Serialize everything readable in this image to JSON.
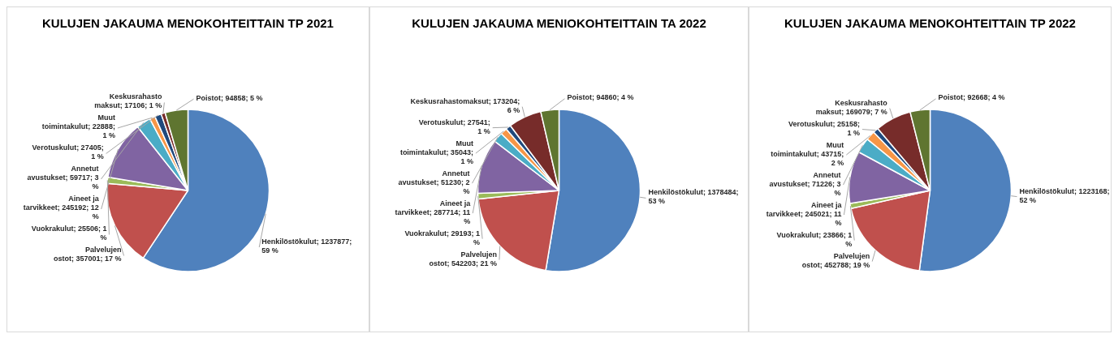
{
  "chart_data": [
    {
      "type": "pie",
      "title": "KULUJEN JAKAUMA MENOKOHTEITTAIN TP 2021",
      "categories": [
        "Henkilöstökulut",
        "Palvelujen ostot",
        "Vuokrakulut",
        "Aineet ja tarvikkeet",
        "Annetut avustukset",
        "Muut toimintakulut",
        "Verotuskulut",
        "Keskusrahasto maksut",
        "Poistot"
      ],
      "values": [
        1237877,
        357001,
        25506,
        245192,
        59717,
        22888,
        27405,
        17106,
        94858
      ],
      "value_labels": [
        "1237877; 59 %",
        "357001; 17 %",
        "25506; 1 %",
        "245192; 12 %",
        "59717; 3 %",
        "22888; 1 %",
        "27405; 1 %",
        "17106; 1 %",
        "94858; 5 %"
      ],
      "colors": [
        "#4f81bd",
        "#c0504d",
        "#9bbb59",
        "#8064a2",
        "#4bacc6",
        "#f79646",
        "#1f497d",
        "#772c2a",
        "#5f7530"
      ],
      "legend": false
    },
    {
      "type": "pie",
      "title": "KULUJEN JAKAUMA MENIOKOHTEITTAIN TA 2022",
      "categories": [
        "Henkilöstökulut",
        "Palvelujen ostot",
        "Vuokrakulut",
        "Aineet ja tarvikkeet",
        "Annetut avustukset",
        "Muut toimintakulut",
        "Verotuskulut",
        "Keskusrahastomaksut",
        "Poistot"
      ],
      "values": [
        1378484,
        542203,
        29193,
        287714,
        51230,
        35043,
        27541,
        173204,
        94860
      ],
      "value_labels": [
        "1378484; 53 %",
        "542203; 21 %",
        "29193; 1 %",
        "287714; 11 %",
        "51230; 2 %",
        "35043; 1 %",
        "27541; 1 %",
        "173204; 6 %",
        "94860; 4 %"
      ],
      "colors": [
        "#4f81bd",
        "#c0504d",
        "#9bbb59",
        "#8064a2",
        "#4bacc6",
        "#f79646",
        "#1f497d",
        "#772c2a",
        "#5f7530"
      ],
      "legend": false
    },
    {
      "type": "pie",
      "title": "KULUJEN JAKAUMA MENOKOHTEITTAIN TP 2022",
      "categories": [
        "Henkilöstökulut",
        "Palvelujen ostot",
        "Vuokrakulut",
        "Aineet ja tarvikkeet",
        "Annetut avustukset",
        "Muut toimintakulut",
        "Verotuskulut",
        "Keskusrahasto maksut",
        "Poistot"
      ],
      "values": [
        1223168,
        452788,
        23866,
        245021,
        71226,
        43715,
        25158,
        169079,
        92668
      ],
      "value_labels": [
        "1223168; 52 %",
        "452788; 19 %",
        "23866; 1 %",
        "245021; 11 %",
        "71226; 3 %",
        "43715; 2 %",
        "25158; 1 %",
        "169079; 7 %",
        "92668; 4 %"
      ],
      "colors": [
        "#4f81bd",
        "#c0504d",
        "#9bbb59",
        "#8064a2",
        "#4bacc6",
        "#f79646",
        "#1f497d",
        "#772c2a",
        "#5f7530"
      ],
      "legend": false
    }
  ]
}
